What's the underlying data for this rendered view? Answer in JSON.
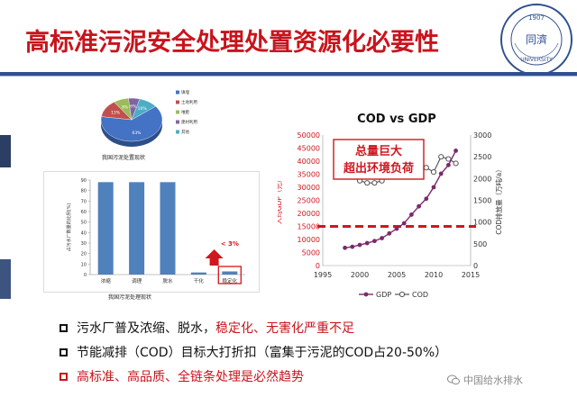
{
  "slide": {
    "title": "高标准污泥安全处理处置资源化必要性",
    "logo_text": "1907 · TONGJI UNIVERSITY"
  },
  "pie_chart": {
    "caption": "我国污泥处置现状",
    "slices": [
      {
        "label": "填埋",
        "value": 63,
        "color": "#4472c4"
      },
      {
        "label": "土地利用",
        "value": 13,
        "color": "#c0504d"
      },
      {
        "label": "堆肥",
        "value": 8,
        "color": "#9bbb59"
      },
      {
        "label": "建材利用",
        "value": 6,
        "color": "#8064a2"
      },
      {
        "label": "其他",
        "value": 10,
        "color": "#4bacc6"
      }
    ]
  },
  "chart_data": [
    {
      "type": "bar",
      "caption": "我国污泥处理现状",
      "ylabel": "占污水厂数量的比例(%)",
      "categories": [
        "浓缩",
        "调理",
        "脱水",
        "干化",
        "稳定化"
      ],
      "values": [
        88,
        88,
        88,
        2,
        3
      ],
      "ylim": [
        0,
        90
      ],
      "yticks": [
        0,
        10,
        20,
        30,
        40,
        50,
        60,
        70,
        80,
        90
      ],
      "annotation": "< 3%"
    },
    {
      "type": "line",
      "title": "COD vs GDP",
      "x": [
        1998,
        1999,
        2000,
        2001,
        2002,
        2003,
        2004,
        2005,
        2006,
        2007,
        2008,
        2009,
        2010,
        2011,
        2012,
        2013
      ],
      "xticks": [
        1995,
        2000,
        2005,
        2010,
        2015
      ],
      "xlim": [
        1995,
        2015
      ],
      "ylabel_left": "人均GDP（元）",
      "ylabel_right": "COD排放量（万吨/a）",
      "ylim_left": [
        0,
        50000
      ],
      "yticks_left": [
        0,
        5000,
        10000,
        15000,
        20000,
        25000,
        30000,
        35000,
        40000,
        45000,
        50000
      ],
      "ylim_right": [
        0,
        3000
      ],
      "yticks_right": [
        0,
        500,
        1000,
        1500,
        2000,
        2500,
        3000
      ],
      "series": [
        {
          "name": "GDP",
          "axis": "left",
          "color": "#7b2a6b",
          "values": [
            6800,
            7200,
            7900,
            8600,
            9400,
            10500,
            12300,
            14100,
            16200,
            19500,
            22700,
            25600,
            30000,
            35200,
            38500,
            44000
          ]
        },
        {
          "name": "COD",
          "axis": "right",
          "color": "#555555",
          "values": [
            2200,
            2050,
            1950,
            1900,
            1900,
            1950,
            2050,
            2150,
            2250,
            2350,
            2330,
            2250,
            2150,
            2500,
            2450,
            2350
          ]
        }
      ],
      "threshold_left": 15000,
      "callout_lines": [
        "总量巨大",
        "超出环境负荷"
      ],
      "colors": {
        "threshold": "#d0161e",
        "callout_border": "#d0161e",
        "callout_text": "#d0161e"
      }
    }
  ],
  "bullets": [
    {
      "plain": "污水厂普及浓缩、脱水，",
      "red": "稳定化、无害化严重不足",
      "box_red": false
    },
    {
      "plain": "节能减排（COD）目标大打折扣（富集于污泥的COD占20-50%）",
      "red": "",
      "box_red": false
    },
    {
      "plain": "",
      "red": "高标准、高品质、全链条处理是必然趋势",
      "box_red": true
    }
  ],
  "watermark": "中国给水排水"
}
